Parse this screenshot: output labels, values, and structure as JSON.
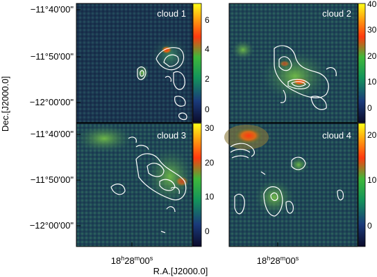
{
  "y_axis_label": "Dec.[J2000.0]",
  "x_axis_label": "R.A.[J2000.0]",
  "dec_ticks": {
    "top": [
      "−11°40'00\"",
      "−11°50'00\"",
      "−12°00'00\""
    ],
    "bottom": [
      "−11°40'00\"",
      "−11°50'00\"",
      "−12°00'00\""
    ]
  },
  "ra_tick": {
    "h": "18",
    "m": "28",
    "s": "00"
  },
  "panels": [
    {
      "title": "cloud 1",
      "colorbar_ticks": [
        "6",
        "4",
        "2",
        "0"
      ]
    },
    {
      "title": "cloud 2",
      "colorbar_ticks": [
        "40",
        "30",
        "20",
        "10",
        "0"
      ]
    },
    {
      "title": "cloud 3",
      "colorbar_ticks": [
        "30",
        "20",
        "10",
        "0"
      ]
    },
    {
      "title": "cloud 4",
      "colorbar_ticks": [
        "20",
        "10",
        "0"
      ]
    }
  ],
  "colors": {
    "map_low": "#14243a",
    "map_mid": "#2f6b58",
    "map_high": "#79a845",
    "contour": "#ffffff",
    "colorbar_top": "#ffff10",
    "colorbar_mid": "#ff3010",
    "colorbar_low": "#10a040",
    "colorbar_bottom": "#101030"
  }
}
